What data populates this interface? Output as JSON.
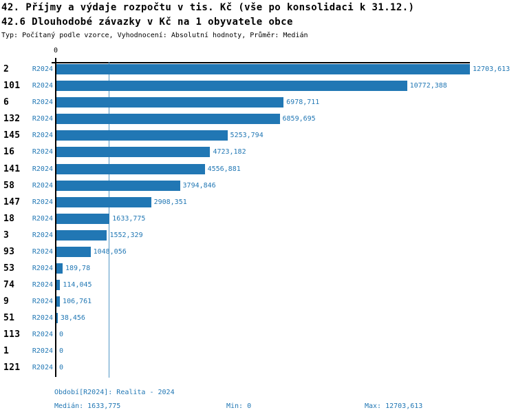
{
  "header": {
    "title": "42. Příjmy a výdaje rozpočtu v tis. Kč (vše po konsolidaci k 31.12.)",
    "subtitle": "42.6 Dlouhodobé závazky v Kč na 1 obyvatele obce",
    "meta": "Typ: Počítaný podle vzorce, Vyhodnocení: Absolutní hodnoty, Průměr: Medián"
  },
  "colors": {
    "bar": "#2177B4",
    "label_blue": "#2177B4",
    "median_line": "#5095C5",
    "axis": "#000000"
  },
  "chart_data": {
    "type": "bar",
    "orientation": "horizontal",
    "axis_zero_label": "0",
    "series_label": "R2024",
    "xlim": [
      0,
      12703.613
    ],
    "median_value": 1633.775,
    "grid": "median-line-only",
    "categories": [
      "2",
      "101",
      "6",
      "132",
      "145",
      "16",
      "141",
      "58",
      "147",
      "18",
      "3",
      "93",
      "53",
      "74",
      "9",
      "51",
      "113",
      "1",
      "121"
    ],
    "values": [
      12703.613,
      10772.388,
      6978.711,
      6859.695,
      5253.794,
      4723.182,
      4556.881,
      3794.846,
      2908.351,
      1633.775,
      1552.329,
      1048.056,
      189.78,
      114.045,
      106.761,
      38.456,
      0,
      0,
      0
    ],
    "value_labels": [
      "12703,613",
      "10772,388",
      "6978,711",
      "6859,695",
      "5253,794",
      "4723,182",
      "4556,881",
      "3794,846",
      "2908,351",
      "1633,775",
      "1552,329",
      "1048,056",
      "189,78",
      "114,045",
      "106,761",
      "38,456",
      "0",
      "0",
      "0"
    ]
  },
  "footer": {
    "period": "Období[R2024]: Realita - 2024",
    "median": "Medián: 1633,775",
    "min": "Min: 0",
    "max": "Max: 12703,613"
  }
}
